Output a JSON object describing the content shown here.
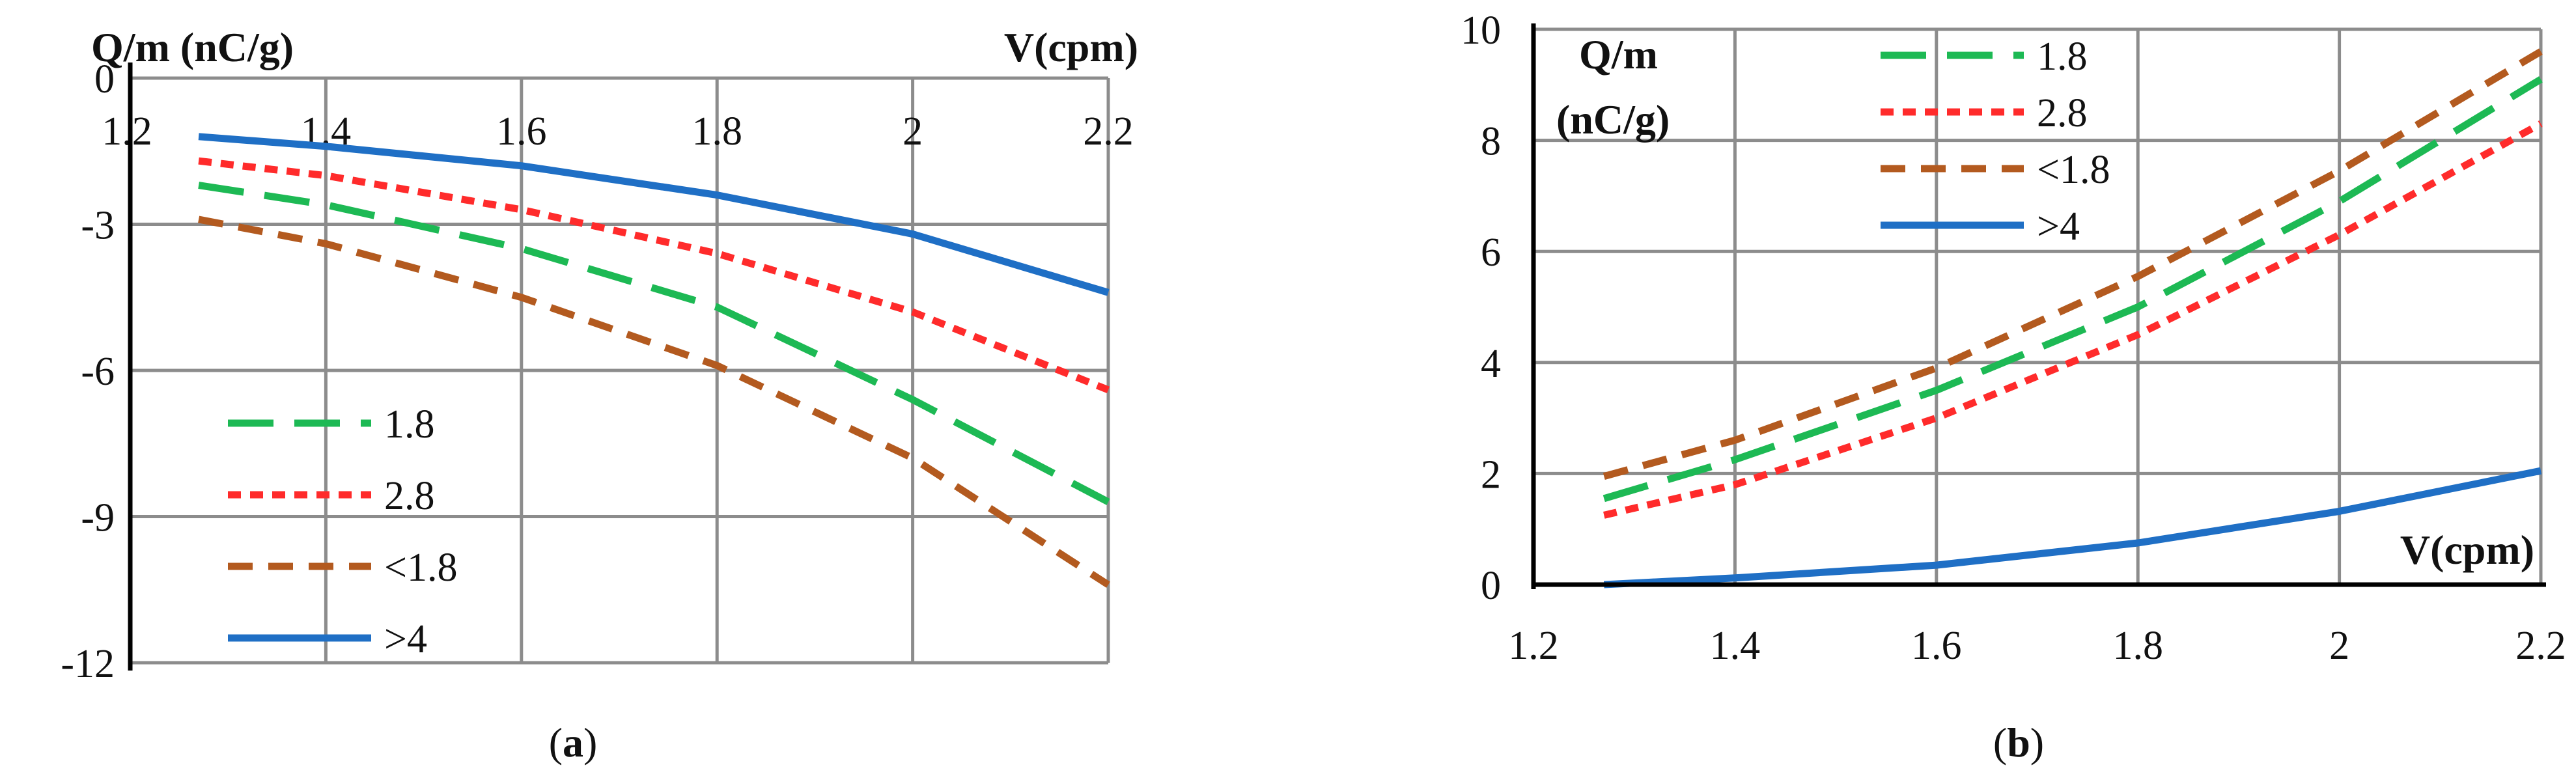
{
  "chart_data": [
    {
      "id": "a",
      "type": "line",
      "caption_open": "(",
      "caption_letter": "a",
      "caption_close": ")",
      "ylabel": "Q/m (nC/g)",
      "xlabel": "V(cpm)",
      "xlim": [
        1.2,
        2.2
      ],
      "ylim": [
        -12,
        0
      ],
      "xticks": [
        1.2,
        1.4,
        1.6,
        1.8,
        2.0,
        2.2
      ],
      "xtick_labels": [
        "1.2",
        "1.4",
        "1.6",
        "1.8",
        "2",
        "2.2"
      ],
      "yticks": [
        0,
        -3,
        -6,
        -9,
        -12
      ],
      "ytick_labels": [
        "0",
        "-3",
        "-6",
        "-9",
        "-12"
      ],
      "legend_position": "lower-left",
      "series": [
        {
          "name": "1.8",
          "color": "#1db954",
          "style": "long-dash",
          "x": [
            1.27,
            1.4,
            1.6,
            1.8,
            2.0,
            2.2
          ],
          "y": [
            -2.2,
            -2.6,
            -3.5,
            -4.7,
            -6.6,
            -8.7
          ]
        },
        {
          "name": "2.8",
          "color": "#ff2b2b",
          "style": "short-dash",
          "x": [
            1.27,
            1.4,
            1.6,
            1.8,
            2.0,
            2.2
          ],
          "y": [
            -1.7,
            -2.0,
            -2.7,
            -3.6,
            -4.8,
            -6.4
          ]
        },
        {
          "name": "<1.8",
          "color": "#b35a1f",
          "style": "medium-dash",
          "x": [
            1.27,
            1.4,
            1.6,
            1.8,
            2.0,
            2.2
          ],
          "y": [
            -2.9,
            -3.4,
            -4.5,
            -5.9,
            -7.8,
            -10.4
          ]
        },
        {
          "name": ">4",
          "color": "#1f6fc5",
          "style": "solid",
          "x": [
            1.27,
            1.4,
            1.6,
            1.8,
            2.0,
            2.2
          ],
          "y": [
            -1.2,
            -1.4,
            -1.8,
            -2.4,
            -3.2,
            -4.4
          ]
        }
      ]
    },
    {
      "id": "b",
      "type": "line",
      "caption_open": "(",
      "caption_letter": "b",
      "caption_close": ")",
      "ylabel_line1": "Q/m",
      "ylabel_line2": "(nC/g)",
      "xlabel": "V(cpm)",
      "xlim": [
        1.2,
        2.2
      ],
      "ylim": [
        0,
        10
      ],
      "xticks": [
        1.2,
        1.4,
        1.6,
        1.8,
        2.0,
        2.2
      ],
      "xtick_labels": [
        "1.2",
        "1.4",
        "1.6",
        "1.8",
        "2",
        "2.2"
      ],
      "yticks": [
        0,
        2,
        4,
        6,
        8,
        10
      ],
      "ytick_labels": [
        "0",
        "2",
        "4",
        "6",
        "8",
        "10"
      ],
      "legend_position": "top-left",
      "series": [
        {
          "name": "1.8",
          "color": "#1db954",
          "style": "long-dash",
          "x": [
            1.27,
            1.4,
            1.6,
            1.8,
            2.0,
            2.2
          ],
          "y": [
            1.55,
            2.25,
            3.5,
            5.0,
            6.9,
            9.1
          ]
        },
        {
          "name": "2.8",
          "color": "#ff2b2b",
          "style": "short-dash",
          "x": [
            1.27,
            1.4,
            1.6,
            1.8,
            2.0,
            2.2
          ],
          "y": [
            1.25,
            1.8,
            3.0,
            4.5,
            6.3,
            8.3
          ]
        },
        {
          "name": "<1.8",
          "color": "#b35a1f",
          "style": "medium-dash",
          "x": [
            1.27,
            1.4,
            1.6,
            1.8,
            2.0,
            2.2
          ],
          "y": [
            1.95,
            2.6,
            3.9,
            5.55,
            7.45,
            9.6
          ]
        },
        {
          "name": ">4",
          "color": "#1f6fc5",
          "style": "solid",
          "x": [
            1.27,
            1.4,
            1.6,
            1.8,
            2.0,
            2.2
          ],
          "y": [
            0.0,
            0.12,
            0.35,
            0.75,
            1.32,
            2.05
          ]
        }
      ]
    }
  ]
}
